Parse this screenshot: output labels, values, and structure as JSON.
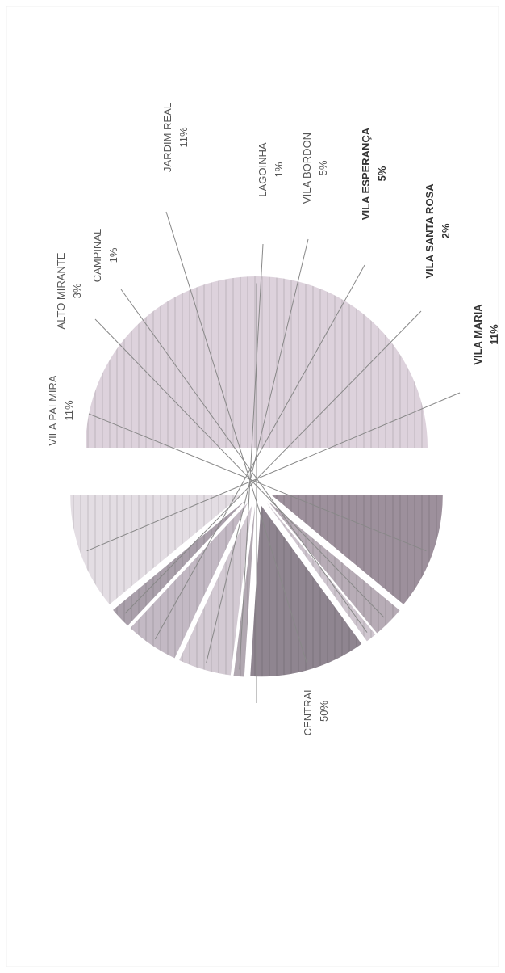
{
  "chart_data": {
    "type": "pie",
    "title": "",
    "slices": [
      {
        "label": "CENTRAL",
        "value": 50,
        "value_label": "50%",
        "color": "#ddd2dc",
        "bold": false
      },
      {
        "label": "VILA PALMIRA",
        "value": 11,
        "value_label": "11%",
        "color": "#9d909c",
        "bold": false
      },
      {
        "label": "ALTO MIRANTE",
        "value": 3,
        "value_label": "3%",
        "color": "#b7acb6",
        "bold": false
      },
      {
        "label": "CAMPINAL",
        "value": 1,
        "value_label": "1%",
        "color": "#cfc6cf",
        "bold": false
      },
      {
        "label": "JARDIM REAL",
        "value": 11,
        "value_label": "11%",
        "color": "#8f8590",
        "bold": false
      },
      {
        "label": "LAGOINHA",
        "value": 1,
        "value_label": "1%",
        "color": "#b1a8b1",
        "bold": false
      },
      {
        "label": "VILA BORDON",
        "value": 5,
        "value_label": "5%",
        "color": "#d3cad3",
        "bold": false
      },
      {
        "label": "VILA ESPERANÇA",
        "value": 5,
        "value_label": "5%",
        "color": "#c3b9c4",
        "bold": true
      },
      {
        "label": "VILA SANTA ROSA",
        "value": 2,
        "value_label": "2%",
        "color": "#aaa0ab",
        "bold": true
      },
      {
        "label": "VILA MARIA",
        "value": 11,
        "value_label": "11%",
        "color": "#e3dde3",
        "bold": true
      }
    ],
    "legend": "none",
    "orientation": "rotated-90-clockwise"
  }
}
